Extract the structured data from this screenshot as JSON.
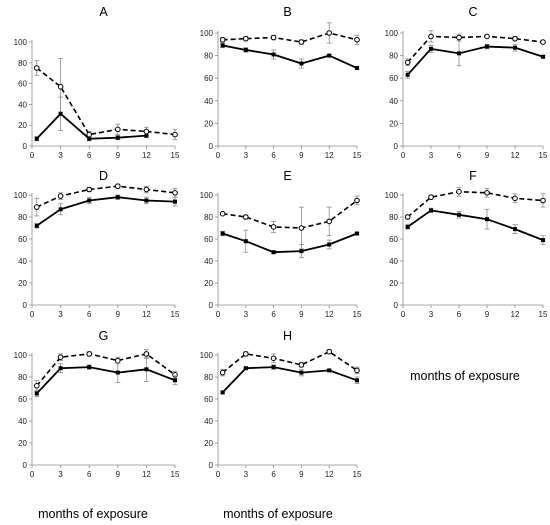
{
  "figure": {
    "xlabel": "months of exposure"
  },
  "colors": {
    "solid_series": "#000000",
    "dashed_series": "#000000",
    "error_bar": "#8c8c8c",
    "axis": "#8c8c8c"
  },
  "chart_data": [
    {
      "type": "line",
      "title": "A",
      "xlabel": "",
      "ylabel": "",
      "xlim": [
        0,
        15
      ],
      "xticks": [
        0,
        3,
        6,
        9,
        12,
        15
      ],
      "ylim": [
        0,
        100
      ],
      "yticks": [
        0,
        20,
        40,
        60,
        80,
        100
      ],
      "x": [
        0.5,
        3,
        6,
        9,
        12,
        15
      ],
      "series": [
        {
          "style": "dashed",
          "marker": "open-circle",
          "values": [
            75,
            57,
            11,
            16,
            14,
            11
          ],
          "errors": [
            7,
            27,
            3,
            5,
            4,
            5
          ]
        },
        {
          "style": "solid",
          "marker": "filled-square",
          "values": [
            7,
            31,
            7,
            8,
            10,
            null
          ],
          "errors": [
            2,
            16,
            2,
            2,
            2,
            null
          ]
        }
      ]
    },
    {
      "type": "line",
      "title": "B",
      "xlabel": "",
      "ylabel": "",
      "xlim": [
        0,
        15
      ],
      "xticks": [
        0,
        3,
        6,
        9,
        12,
        15
      ],
      "ylim": [
        0,
        100
      ],
      "yticks": [
        0,
        20,
        40,
        60,
        80,
        100
      ],
      "x": [
        0.5,
        3,
        6,
        9,
        12,
        15
      ],
      "series": [
        {
          "style": "dashed",
          "marker": "open-circle",
          "values": [
            94,
            95,
            96,
            92,
            100,
            94
          ],
          "errors": [
            2,
            2,
            2,
            2,
            9,
            4
          ]
        },
        {
          "style": "solid",
          "marker": "filled-square",
          "values": [
            89,
            85,
            81,
            73,
            80,
            69
          ],
          "errors": [
            2,
            2,
            4,
            4,
            1,
            1
          ]
        }
      ]
    },
    {
      "type": "line",
      "title": "C",
      "xlabel": "",
      "ylabel": "",
      "xlim": [
        0,
        15
      ],
      "xticks": [
        0,
        3,
        6,
        9,
        12,
        15
      ],
      "ylim": [
        0,
        100
      ],
      "yticks": [
        0,
        20,
        40,
        60,
        80,
        100
      ],
      "x": [
        0.5,
        3,
        6,
        9,
        12,
        15
      ],
      "series": [
        {
          "style": "dashed",
          "marker": "open-circle",
          "values": [
            74,
            97,
            96,
            97,
            95,
            92
          ],
          "errors": [
            3,
            5,
            3,
            1,
            2,
            1
          ]
        },
        {
          "style": "solid",
          "marker": "filled-square",
          "values": [
            63,
            86,
            82,
            88,
            87,
            79
          ],
          "errors": [
            3,
            3,
            11,
            2,
            3,
            1
          ]
        }
      ]
    },
    {
      "type": "line",
      "title": "D",
      "xlabel": "",
      "ylabel": "",
      "xlim": [
        0,
        15
      ],
      "xticks": [
        0,
        3,
        6,
        9,
        12,
        15
      ],
      "ylim": [
        0,
        100
      ],
      "yticks": [
        0,
        20,
        40,
        60,
        80,
        100
      ],
      "x": [
        0.5,
        3,
        6,
        9,
        12,
        15
      ],
      "series": [
        {
          "style": "dashed",
          "marker": "open-circle",
          "values": [
            89,
            99,
            105,
            108,
            105,
            102
          ],
          "errors": [
            8,
            3,
            2,
            2,
            3,
            4
          ]
        },
        {
          "style": "solid",
          "marker": "filled-square",
          "values": [
            72,
            87,
            95,
            98,
            95,
            94
          ],
          "errors": [
            2,
            5,
            3,
            2,
            3,
            4
          ]
        }
      ]
    },
    {
      "type": "line",
      "title": "E",
      "xlabel": "",
      "ylabel": "",
      "xlim": [
        0,
        15
      ],
      "xticks": [
        0,
        3,
        6,
        9,
        12,
        15
      ],
      "ylim": [
        0,
        100
      ],
      "yticks": [
        0,
        20,
        40,
        60,
        80,
        100
      ],
      "x": [
        0.5,
        3,
        6,
        9,
        12,
        15
      ],
      "series": [
        {
          "style": "dashed",
          "marker": "open-circle",
          "values": [
            83,
            80,
            71,
            70,
            76,
            95
          ],
          "errors": [
            1,
            2,
            5,
            19,
            13,
            4
          ]
        },
        {
          "style": "solid",
          "marker": "filled-square",
          "values": [
            65,
            58,
            48,
            49,
            55,
            65
          ],
          "errors": [
            2,
            10,
            1,
            6,
            4,
            1
          ]
        }
      ]
    },
    {
      "type": "line",
      "title": "F",
      "xlabel": "months of exposure",
      "ylabel": "",
      "xlim": [
        0,
        15
      ],
      "xticks": [
        0,
        3,
        6,
        9,
        12,
        15
      ],
      "ylim": [
        0,
        100
      ],
      "yticks": [
        0,
        20,
        40,
        60,
        80,
        100
      ],
      "x": [
        0.5,
        3,
        6,
        9,
        12,
        15
      ],
      "series": [
        {
          "style": "dashed",
          "marker": "open-circle",
          "values": [
            80,
            98,
            103,
            102,
            97,
            95
          ],
          "errors": [
            2,
            2,
            4,
            4,
            4,
            6
          ]
        },
        {
          "style": "solid",
          "marker": "filled-square",
          "values": [
            71,
            86,
            82,
            78,
            69,
            59
          ],
          "errors": [
            2,
            2,
            3,
            9,
            4,
            4
          ]
        }
      ]
    },
    {
      "type": "line",
      "title": "G",
      "xlabel": "months of exposure",
      "ylabel": "",
      "xlim": [
        0,
        15
      ],
      "xticks": [
        0,
        3,
        6,
        9,
        12,
        15
      ],
      "ylim": [
        0,
        100
      ],
      "yticks": [
        0,
        20,
        40,
        60,
        80,
        100
      ],
      "x": [
        0.5,
        3,
        6,
        9,
        12,
        15
      ],
      "series": [
        {
          "style": "dashed",
          "marker": "open-circle",
          "values": [
            72,
            98,
            101,
            95,
            101,
            82
          ],
          "errors": [
            5,
            3,
            2,
            3,
            4,
            3
          ]
        },
        {
          "style": "solid",
          "marker": "filled-square",
          "values": [
            65,
            88,
            89,
            84,
            87,
            77
          ],
          "errors": [
            3,
            4,
            2,
            9,
            11,
            4
          ]
        }
      ]
    },
    {
      "type": "line",
      "title": "H",
      "xlabel": "months of exposure",
      "ylabel": "",
      "xlim": [
        0,
        15
      ],
      "xticks": [
        0,
        3,
        6,
        9,
        12,
        15
      ],
      "ylim": [
        0,
        100
      ],
      "yticks": [
        0,
        20,
        40,
        60,
        80,
        100
      ],
      "x": [
        0.5,
        3,
        6,
        9,
        12,
        15
      ],
      "series": [
        {
          "style": "dashed",
          "marker": "open-circle",
          "values": [
            84,
            101,
            97,
            91,
            103,
            86
          ],
          "errors": [
            3,
            2,
            4,
            2,
            2,
            3
          ]
        },
        {
          "style": "solid",
          "marker": "filled-square",
          "values": [
            66,
            88,
            89,
            84,
            86,
            77
          ],
          "errors": [
            1,
            1,
            2,
            3,
            1,
            3
          ]
        }
      ]
    }
  ]
}
